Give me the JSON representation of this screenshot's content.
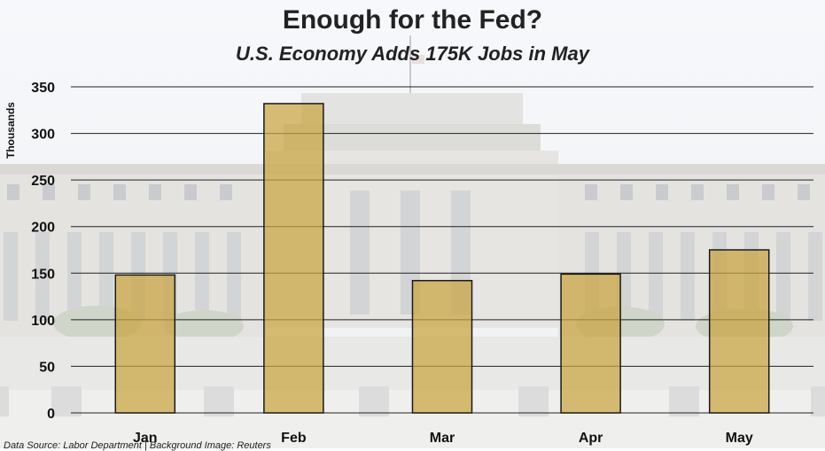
{
  "chart_data": {
    "type": "bar",
    "title": "Enough for the Fed?",
    "subtitle": "U.S. Economy Adds 175K Jobs in May",
    "ylabel": "Thousands",
    "xlabel": "",
    "categories": [
      "Jan",
      "Feb",
      "Mar",
      "Apr",
      "May"
    ],
    "values": [
      148,
      332,
      142,
      149,
      175
    ],
    "ylim": [
      0,
      350
    ],
    "yticks": [
      0,
      50,
      100,
      150,
      200,
      250,
      300,
      350
    ],
    "grid": true,
    "colors": {
      "bar": "#c9a440",
      "bar_edge": "#1a1a1a",
      "grid": "#222222"
    }
  },
  "source": "Data Source: Labor Department | Background Image: Reuters"
}
